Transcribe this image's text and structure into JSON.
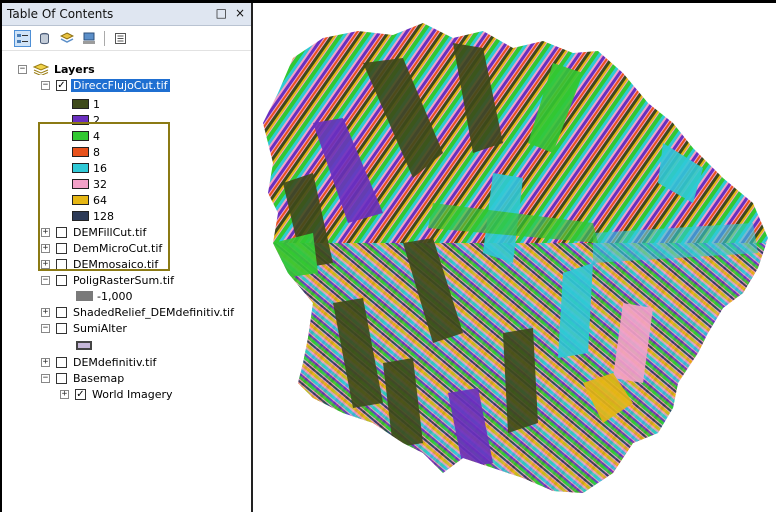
{
  "toc": {
    "title": "Table Of Contents",
    "pin_glyph": "□",
    "close_glyph": "×",
    "toolbar": [
      "list-by-drawing-order-icon",
      "list-by-source-icon",
      "list-by-visibility-icon",
      "list-by-selection-icon",
      "options-icon"
    ]
  },
  "tree": {
    "root_label": "Layers",
    "layer1": {
      "label": "DireccFlujoCut.tif",
      "checked": true,
      "classes": [
        {
          "label": "1",
          "color": "#3e4a1a"
        },
        {
          "label": "2",
          "color": "#6a2fbf"
        },
        {
          "label": "4",
          "color": "#32c832"
        },
        {
          "label": "8",
          "color": "#e8521c"
        },
        {
          "label": "16",
          "color": "#2fc9d6"
        },
        {
          "label": "32",
          "color": "#f3a1c8"
        },
        {
          "label": "64",
          "color": "#e5b614"
        },
        {
          "label": "128",
          "color": "#2c3a57"
        }
      ]
    },
    "dem_fill": "DEMFillCut.tif",
    "dem_micro": "DemMicroCut.tif",
    "dem_mosaico": "DEMmosaico.tif",
    "polig": {
      "label": "PoligRasterSum.tif",
      "value": "-1,000",
      "color": "#7a7a7a"
    },
    "shaded": "ShadedRelief_DEMdefinitiv.tif",
    "sumi": {
      "label": "SumiAlter",
      "color": "#c6b7d9"
    },
    "dem_def": "DEMdefinitiv.tif",
    "basemap": "Basemap",
    "world": {
      "label": "World Imagery",
      "checked": true
    }
  },
  "colors": {
    "accent": "#1f6fd1",
    "highlight_border": "#8b7a14"
  }
}
